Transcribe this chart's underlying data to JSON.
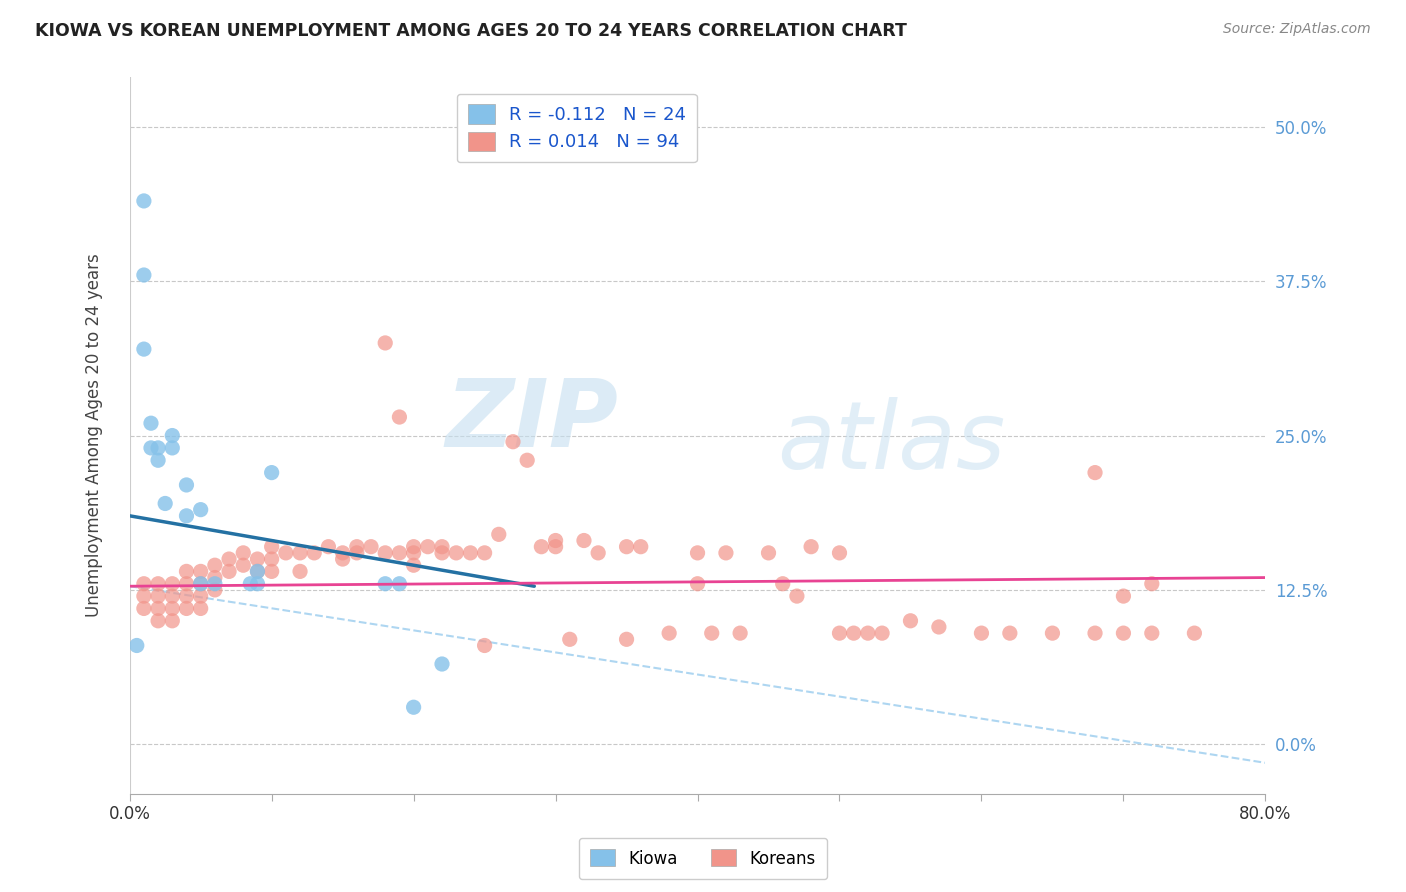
{
  "title": "KIOWA VS KOREAN UNEMPLOYMENT AMONG AGES 20 TO 24 YEARS CORRELATION CHART",
  "source": "Source: ZipAtlas.com",
  "ylabel": "Unemployment Among Ages 20 to 24 years",
  "xlim": [
    0.0,
    0.8
  ],
  "ylim": [
    -0.04,
    0.54
  ],
  "yticks": [
    0.0,
    0.125,
    0.25,
    0.375,
    0.5
  ],
  "xticks": [
    0.0,
    0.1,
    0.2,
    0.3,
    0.4,
    0.5,
    0.6,
    0.7,
    0.8
  ],
  "legend_kiowa_r": "R = -0.112",
  "legend_kiowa_n": "N = 24",
  "legend_korean_r": "R = 0.014",
  "legend_korean_n": "N = 94",
  "kiowa_color": "#85c1e9",
  "korean_color": "#f1948a",
  "kiowa_line_color": "#2471a3",
  "korean_line_color": "#e84393",
  "trend_dash_color": "#aed6f1",
  "watermark_zip": "ZIP",
  "watermark_atlas": "atlas",
  "kiowa_x": [
    0.005,
    0.01,
    0.01,
    0.01,
    0.015,
    0.015,
    0.02,
    0.02,
    0.025,
    0.03,
    0.03,
    0.04,
    0.04,
    0.05,
    0.05,
    0.06,
    0.085,
    0.09,
    0.09,
    0.1,
    0.18,
    0.19,
    0.2,
    0.22
  ],
  "kiowa_y": [
    0.08,
    0.44,
    0.38,
    0.32,
    0.26,
    0.24,
    0.24,
    0.23,
    0.195,
    0.25,
    0.24,
    0.21,
    0.185,
    0.19,
    0.13,
    0.13,
    0.13,
    0.14,
    0.13,
    0.22,
    0.13,
    0.13,
    0.03,
    0.065
  ],
  "korean_x": [
    0.01,
    0.01,
    0.01,
    0.02,
    0.02,
    0.02,
    0.02,
    0.03,
    0.03,
    0.03,
    0.03,
    0.04,
    0.04,
    0.04,
    0.04,
    0.05,
    0.05,
    0.05,
    0.05,
    0.06,
    0.06,
    0.06,
    0.07,
    0.07,
    0.08,
    0.08,
    0.09,
    0.09,
    0.1,
    0.1,
    0.1,
    0.11,
    0.12,
    0.12,
    0.13,
    0.14,
    0.15,
    0.15,
    0.16,
    0.16,
    0.17,
    0.18,
    0.18,
    0.19,
    0.19,
    0.2,
    0.2,
    0.2,
    0.21,
    0.22,
    0.22,
    0.23,
    0.24,
    0.25,
    0.25,
    0.26,
    0.27,
    0.28,
    0.29,
    0.3,
    0.3,
    0.31,
    0.32,
    0.33,
    0.35,
    0.35,
    0.36,
    0.38,
    0.4,
    0.4,
    0.41,
    0.42,
    0.43,
    0.45,
    0.46,
    0.47,
    0.48,
    0.5,
    0.5,
    0.51,
    0.52,
    0.53,
    0.55,
    0.57,
    0.6,
    0.62,
    0.65,
    0.68,
    0.7,
    0.72,
    0.75,
    0.68,
    0.7,
    0.72
  ],
  "korean_y": [
    0.13,
    0.12,
    0.11,
    0.13,
    0.12,
    0.11,
    0.1,
    0.13,
    0.12,
    0.11,
    0.1,
    0.14,
    0.13,
    0.12,
    0.11,
    0.14,
    0.13,
    0.12,
    0.11,
    0.145,
    0.135,
    0.125,
    0.15,
    0.14,
    0.155,
    0.145,
    0.15,
    0.14,
    0.16,
    0.15,
    0.14,
    0.155,
    0.155,
    0.14,
    0.155,
    0.16,
    0.155,
    0.15,
    0.16,
    0.155,
    0.16,
    0.325,
    0.155,
    0.265,
    0.155,
    0.16,
    0.155,
    0.145,
    0.16,
    0.16,
    0.155,
    0.155,
    0.155,
    0.155,
    0.08,
    0.17,
    0.245,
    0.23,
    0.16,
    0.165,
    0.16,
    0.085,
    0.165,
    0.155,
    0.16,
    0.085,
    0.16,
    0.09,
    0.155,
    0.13,
    0.09,
    0.155,
    0.09,
    0.155,
    0.13,
    0.12,
    0.16,
    0.155,
    0.09,
    0.09,
    0.09,
    0.09,
    0.1,
    0.095,
    0.09,
    0.09,
    0.09,
    0.09,
    0.12,
    0.09,
    0.09,
    0.22,
    0.09,
    0.13
  ],
  "kiowa_line_x0": 0.0,
  "kiowa_line_x1": 0.285,
  "kiowa_line_y0": 0.185,
  "kiowa_line_y1": 0.128,
  "korean_line_x0": 0.0,
  "korean_line_x1": 0.8,
  "korean_line_y0": 0.128,
  "korean_line_y1": 0.135,
  "dash_line_x0": 0.0,
  "dash_line_x1": 0.8,
  "dash_line_y0": 0.128,
  "dash_line_y1": -0.015
}
